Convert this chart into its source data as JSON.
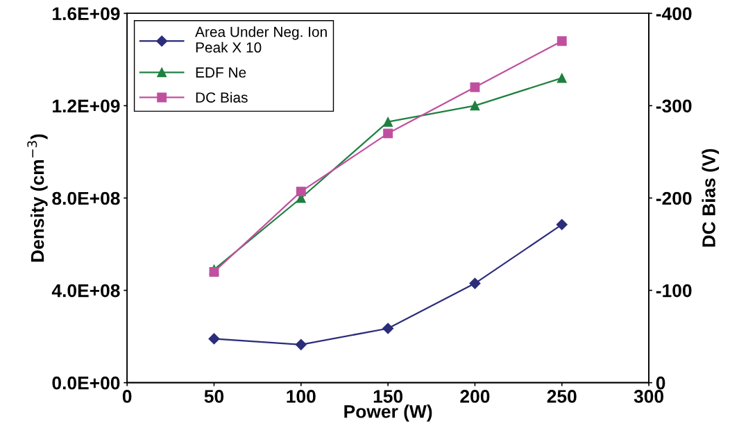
{
  "chart_data": {
    "type": "line",
    "xlabel": "Power (W)",
    "ylabel": "Density (cm$^{−3}$)",
    "y2label": "DC Bias (V)",
    "x": [
      50,
      100,
      150,
      200,
      250
    ],
    "series": [
      {
        "name": "Area Under Neg. Ion\nPeak X 10",
        "color": "#2b2d7a",
        "marker": "diamond",
        "values": [
          190000000.0,
          165000000.0,
          235000000.0,
          430000000.0,
          685000000.0
        ]
      },
      {
        "name": "EDF Ne",
        "color": "#1e8040",
        "marker": "triangle",
        "values": [
          490000000.0,
          800000000.0,
          1130000000.0,
          1200000000.0,
          1320000000.0
        ]
      },
      {
        "name": "DC Bias",
        "color": "#c0509f",
        "marker": "square",
        "axis": "y2",
        "values": [
          -120,
          -207,
          -270,
          -320,
          -370
        ]
      }
    ],
    "xlim": [
      0,
      300
    ],
    "xticks": [
      0,
      50,
      100,
      150,
      200,
      250,
      300
    ],
    "ylim": [
      0,
      1600000000.0
    ],
    "yticks": [
      {
        "value": 0,
        "label": "0.0E+00"
      },
      {
        "value": 400000000.0,
        "label": "4.0E+08"
      },
      {
        "value": 800000000.0,
        "label": "8.0E+08"
      },
      {
        "value": 1200000000.0,
        "label": "1.2E+09"
      },
      {
        "value": 1600000000.0,
        "label": "1.6E+09"
      }
    ],
    "y2lim": [
      0,
      -400
    ],
    "y2ticks": [
      {
        "value": 0,
        "label": "0"
      },
      {
        "value": -100,
        "label": "-100"
      },
      {
        "value": -200,
        "label": "-200"
      },
      {
        "value": -300,
        "label": "-300"
      },
      {
        "value": -400,
        "label": "-400"
      }
    ],
    "legend": "top left",
    "grid": false
  }
}
